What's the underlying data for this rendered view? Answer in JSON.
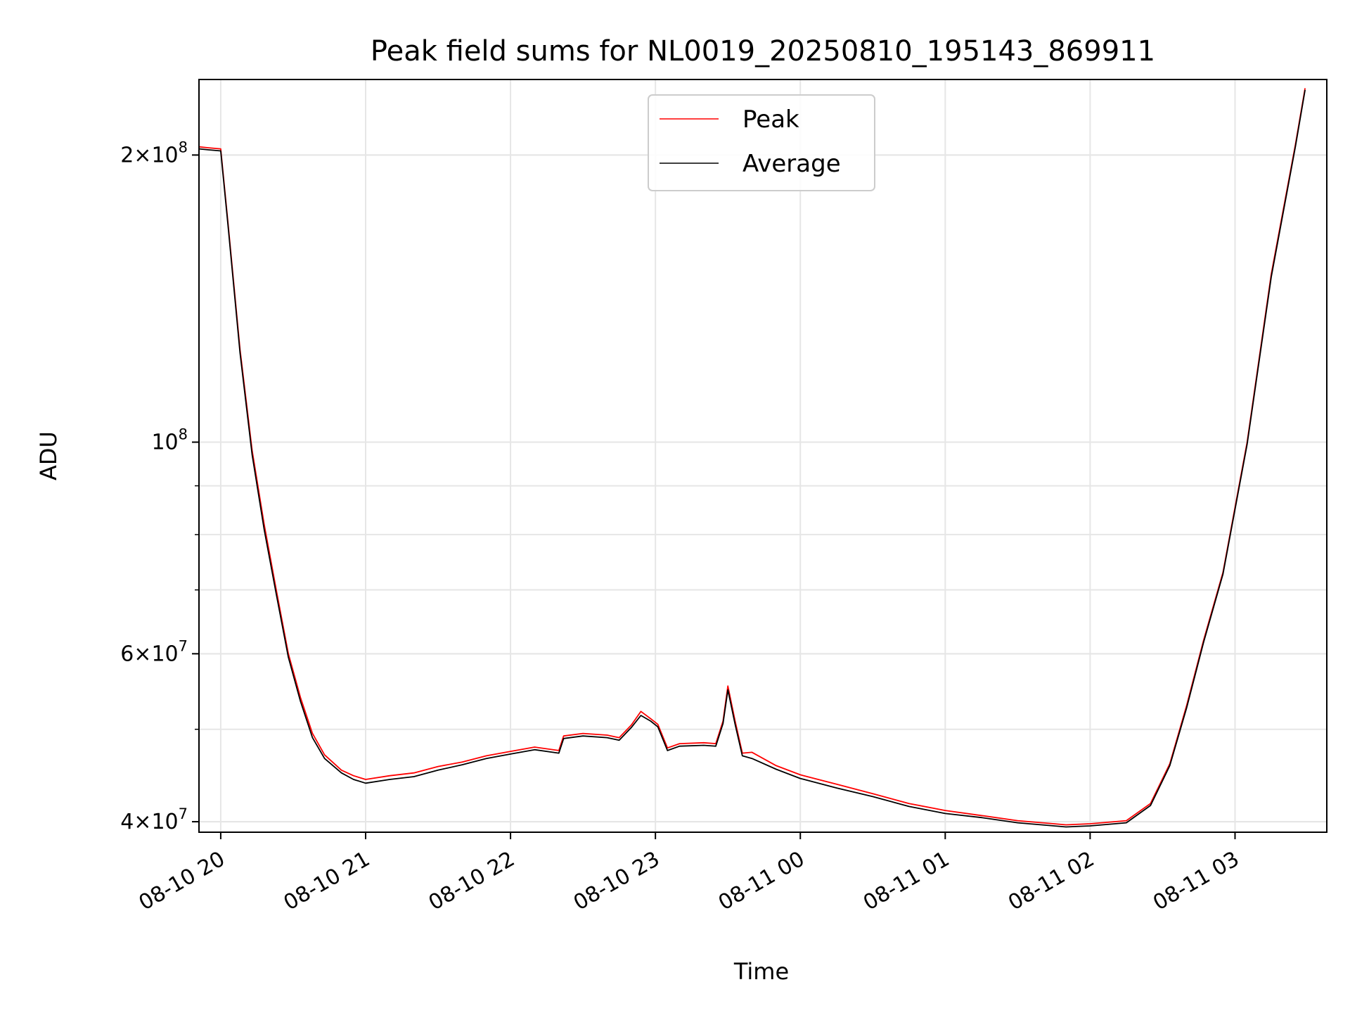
{
  "chart_data": {
    "type": "line",
    "title": "Peak field sums for NL0019_20250810_195143_869911",
    "xlabel": "Time",
    "ylabel": "ADU",
    "y_scale": "log",
    "ylim": [
      39000000,
      240000000
    ],
    "xlim": [
      "2025-08-10 19:51",
      "2025-08-11 03:38"
    ],
    "grid": true,
    "legend_position": "upper center",
    "x_ticks": [
      {
        "value": "2025-08-10 20:00",
        "label": "08-10 20"
      },
      {
        "value": "2025-08-10 21:00",
        "label": "08-10 21"
      },
      {
        "value": "2025-08-10 22:00",
        "label": "08-10 22"
      },
      {
        "value": "2025-08-10 23:00",
        "label": "08-10 23"
      },
      {
        "value": "2025-08-11 00:00",
        "label": "08-11 00"
      },
      {
        "value": "2025-08-11 01:00",
        "label": "08-11 01"
      },
      {
        "value": "2025-08-11 02:00",
        "label": "08-11 02"
      },
      {
        "value": "2025-08-11 03:00",
        "label": "08-11 03"
      }
    ],
    "y_ticks_major": [
      {
        "value": 40000000,
        "mant": "4",
        "exp": "7"
      },
      {
        "value": 60000000,
        "mant": "6",
        "exp": "7"
      },
      {
        "value": 100000000,
        "mant": "",
        "exp": "8"
      },
      {
        "value": 200000000,
        "mant": "2",
        "exp": "8"
      }
    ],
    "series": [
      {
        "name": "Peak",
        "color": "#ff0000",
        "points": [
          [
            "2025-08-10 19:51",
            204000000
          ],
          [
            "2025-08-10 19:55",
            203500000
          ],
          [
            "2025-08-10 20:00",
            203000000
          ],
          [
            "2025-08-10 20:03",
            170000000
          ],
          [
            "2025-08-10 20:08",
            125000000
          ],
          [
            "2025-08-10 20:13",
            98000000
          ],
          [
            "2025-08-10 20:18",
            82000000
          ],
          [
            "2025-08-10 20:23",
            70000000
          ],
          [
            "2025-08-10 20:28",
            60000000
          ],
          [
            "2025-08-10 20:33",
            54000000
          ],
          [
            "2025-08-10 20:38",
            49500000
          ],
          [
            "2025-08-10 20:43",
            47000000
          ],
          [
            "2025-08-10 20:50",
            45300000
          ],
          [
            "2025-08-10 20:55",
            44700000
          ],
          [
            "2025-08-10 21:00",
            44300000
          ],
          [
            "2025-08-10 21:10",
            44700000
          ],
          [
            "2025-08-10 21:20",
            45000000
          ],
          [
            "2025-08-10 21:30",
            45700000
          ],
          [
            "2025-08-10 21:40",
            46200000
          ],
          [
            "2025-08-10 21:50",
            46900000
          ],
          [
            "2025-08-10 22:00",
            47400000
          ],
          [
            "2025-08-10 22:10",
            47900000
          ],
          [
            "2025-08-10 22:20",
            47500000
          ],
          [
            "2025-08-10 22:22",
            49200000
          ],
          [
            "2025-08-10 22:30",
            49500000
          ],
          [
            "2025-08-10 22:40",
            49300000
          ],
          [
            "2025-08-10 22:45",
            49000000
          ],
          [
            "2025-08-10 22:50",
            50500000
          ],
          [
            "2025-08-10 22:54",
            52200000
          ],
          [
            "2025-08-10 22:58",
            51300000
          ],
          [
            "2025-08-10 23:01",
            50600000
          ],
          [
            "2025-08-10 23:05",
            47800000
          ],
          [
            "2025-08-10 23:10",
            48300000
          ],
          [
            "2025-08-10 23:20",
            48400000
          ],
          [
            "2025-08-10 23:25",
            48300000
          ],
          [
            "2025-08-10 23:28",
            51000000
          ],
          [
            "2025-08-10 23:30",
            55500000
          ],
          [
            "2025-08-10 23:33",
            51000000
          ],
          [
            "2025-08-10 23:36",
            47200000
          ],
          [
            "2025-08-10 23:40",
            47300000
          ],
          [
            "2025-08-10 23:50",
            45800000
          ],
          [
            "2025-08-11 00:00",
            44800000
          ],
          [
            "2025-08-11 00:15",
            43800000
          ],
          [
            "2025-08-11 00:30",
            42800000
          ],
          [
            "2025-08-11 00:45",
            41800000
          ],
          [
            "2025-08-11 01:00",
            41100000
          ],
          [
            "2025-08-11 01:15",
            40600000
          ],
          [
            "2025-08-11 01:30",
            40100000
          ],
          [
            "2025-08-11 01:45",
            39800000
          ],
          [
            "2025-08-11 01:50",
            39700000
          ],
          [
            "2025-08-11 02:00",
            39800000
          ],
          [
            "2025-08-11 02:15",
            40100000
          ],
          [
            "2025-08-11 02:25",
            41800000
          ],
          [
            "2025-08-11 02:33",
            46000000
          ],
          [
            "2025-08-11 02:40",
            53000000
          ],
          [
            "2025-08-11 02:47",
            62000000
          ],
          [
            "2025-08-11 02:55",
            73000000
          ],
          [
            "2025-08-11 03:05",
            100000000
          ],
          [
            "2025-08-11 03:15",
            150000000
          ],
          [
            "2025-08-11 03:25",
            205000000
          ],
          [
            "2025-08-11 03:29",
            235000000
          ]
        ]
      },
      {
        "name": "Average",
        "color": "#000000",
        "points": [
          [
            "2025-08-10 19:51",
            203000000
          ],
          [
            "2025-08-10 19:55",
            202500000
          ],
          [
            "2025-08-10 20:00",
            202000000
          ],
          [
            "2025-08-10 20:03",
            169000000
          ],
          [
            "2025-08-10 20:08",
            124000000
          ],
          [
            "2025-08-10 20:13",
            97000000
          ],
          [
            "2025-08-10 20:18",
            81000000
          ],
          [
            "2025-08-10 20:23",
            69300000
          ],
          [
            "2025-08-10 20:28",
            59500000
          ],
          [
            "2025-08-10 20:33",
            53500000
          ],
          [
            "2025-08-10 20:38",
            49000000
          ],
          [
            "2025-08-10 20:43",
            46600000
          ],
          [
            "2025-08-10 20:50",
            45000000
          ],
          [
            "2025-08-10 20:55",
            44300000
          ],
          [
            "2025-08-10 21:00",
            43900000
          ],
          [
            "2025-08-10 21:10",
            44300000
          ],
          [
            "2025-08-10 21:20",
            44600000
          ],
          [
            "2025-08-10 21:30",
            45300000
          ],
          [
            "2025-08-10 21:40",
            45900000
          ],
          [
            "2025-08-10 21:50",
            46600000
          ],
          [
            "2025-08-10 22:00",
            47100000
          ],
          [
            "2025-08-10 22:10",
            47600000
          ],
          [
            "2025-08-10 22:20",
            47200000
          ],
          [
            "2025-08-10 22:22",
            48900000
          ],
          [
            "2025-08-10 22:30",
            49200000
          ],
          [
            "2025-08-10 22:40",
            49000000
          ],
          [
            "2025-08-10 22:45",
            48700000
          ],
          [
            "2025-08-10 22:50",
            50200000
          ],
          [
            "2025-08-10 22:54",
            51700000
          ],
          [
            "2025-08-10 22:58",
            51000000
          ],
          [
            "2025-08-10 23:01",
            50300000
          ],
          [
            "2025-08-10 23:05",
            47500000
          ],
          [
            "2025-08-10 23:10",
            48000000
          ],
          [
            "2025-08-10 23:20",
            48100000
          ],
          [
            "2025-08-10 23:25",
            48000000
          ],
          [
            "2025-08-10 23:28",
            50700000
          ],
          [
            "2025-08-10 23:30",
            55000000
          ],
          [
            "2025-08-10 23:33",
            50600000
          ],
          [
            "2025-08-10 23:36",
            46900000
          ],
          [
            "2025-08-10 23:40",
            46600000
          ],
          [
            "2025-08-10 23:50",
            45400000
          ],
          [
            "2025-08-11 00:00",
            44400000
          ],
          [
            "2025-08-11 00:15",
            43400000
          ],
          [
            "2025-08-11 00:30",
            42500000
          ],
          [
            "2025-08-11 00:45",
            41500000
          ],
          [
            "2025-08-11 01:00",
            40800000
          ],
          [
            "2025-08-11 01:15",
            40400000
          ],
          [
            "2025-08-11 01:30",
            39900000
          ],
          [
            "2025-08-11 01:45",
            39600000
          ],
          [
            "2025-08-11 01:50",
            39500000
          ],
          [
            "2025-08-11 02:00",
            39600000
          ],
          [
            "2025-08-11 02:15",
            39900000
          ],
          [
            "2025-08-11 02:25",
            41600000
          ],
          [
            "2025-08-11 02:33",
            45800000
          ],
          [
            "2025-08-11 02:40",
            52700000
          ],
          [
            "2025-08-11 02:47",
            61700000
          ],
          [
            "2025-08-11 02:55",
            72700000
          ],
          [
            "2025-08-11 03:05",
            99500000
          ],
          [
            "2025-08-11 03:15",
            149000000
          ],
          [
            "2025-08-11 03:25",
            204000000
          ],
          [
            "2025-08-11 03:29",
            234000000
          ]
        ]
      }
    ]
  }
}
